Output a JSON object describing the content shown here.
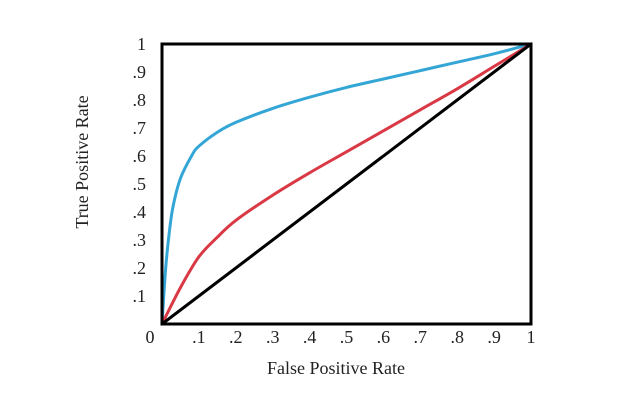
{
  "chart_data": {
    "type": "line",
    "xlabel": "False Positive Rate",
    "ylabel": "True Positive Rate",
    "xlim": [
      0,
      1
    ],
    "ylim": [
      0,
      1
    ],
    "grid": false,
    "x_ticks": [
      "0",
      ".1",
      ".2",
      ".3",
      ".4",
      ".5",
      ".6",
      ".7",
      ".8",
      ".9",
      "1"
    ],
    "y_ticks": [
      ".1",
      ".2",
      ".3",
      ".4",
      ".5",
      ".6",
      ".7",
      ".8",
      ".9",
      "1"
    ],
    "series": [
      {
        "color": "#34a6d6",
        "points": [
          [
            0,
            0
          ],
          [
            0.01,
            0.2
          ],
          [
            0.02,
            0.33
          ],
          [
            0.03,
            0.42
          ],
          [
            0.05,
            0.52
          ],
          [
            0.08,
            0.6
          ],
          [
            0.1,
            0.635
          ],
          [
            0.15,
            0.685
          ],
          [
            0.2,
            0.72
          ],
          [
            0.3,
            0.77
          ],
          [
            0.4,
            0.81
          ],
          [
            0.5,
            0.845
          ],
          [
            0.6,
            0.875
          ],
          [
            0.7,
            0.905
          ],
          [
            0.8,
            0.935
          ],
          [
            0.9,
            0.965
          ],
          [
            1.0,
            1.0
          ]
        ]
      },
      {
        "color": "#d93945",
        "points": [
          [
            0,
            0
          ],
          [
            0.05,
            0.13
          ],
          [
            0.1,
            0.24
          ],
          [
            0.15,
            0.31
          ],
          [
            0.2,
            0.37
          ],
          [
            0.3,
            0.46
          ],
          [
            0.4,
            0.54
          ],
          [
            0.5,
            0.615
          ],
          [
            0.6,
            0.69
          ],
          [
            0.7,
            0.765
          ],
          [
            0.8,
            0.84
          ],
          [
            0.9,
            0.92
          ],
          [
            1.0,
            1.0
          ]
        ]
      },
      {
        "color": "#000000",
        "points": [
          [
            0,
            0
          ],
          [
            1,
            1
          ]
        ]
      }
    ]
  }
}
